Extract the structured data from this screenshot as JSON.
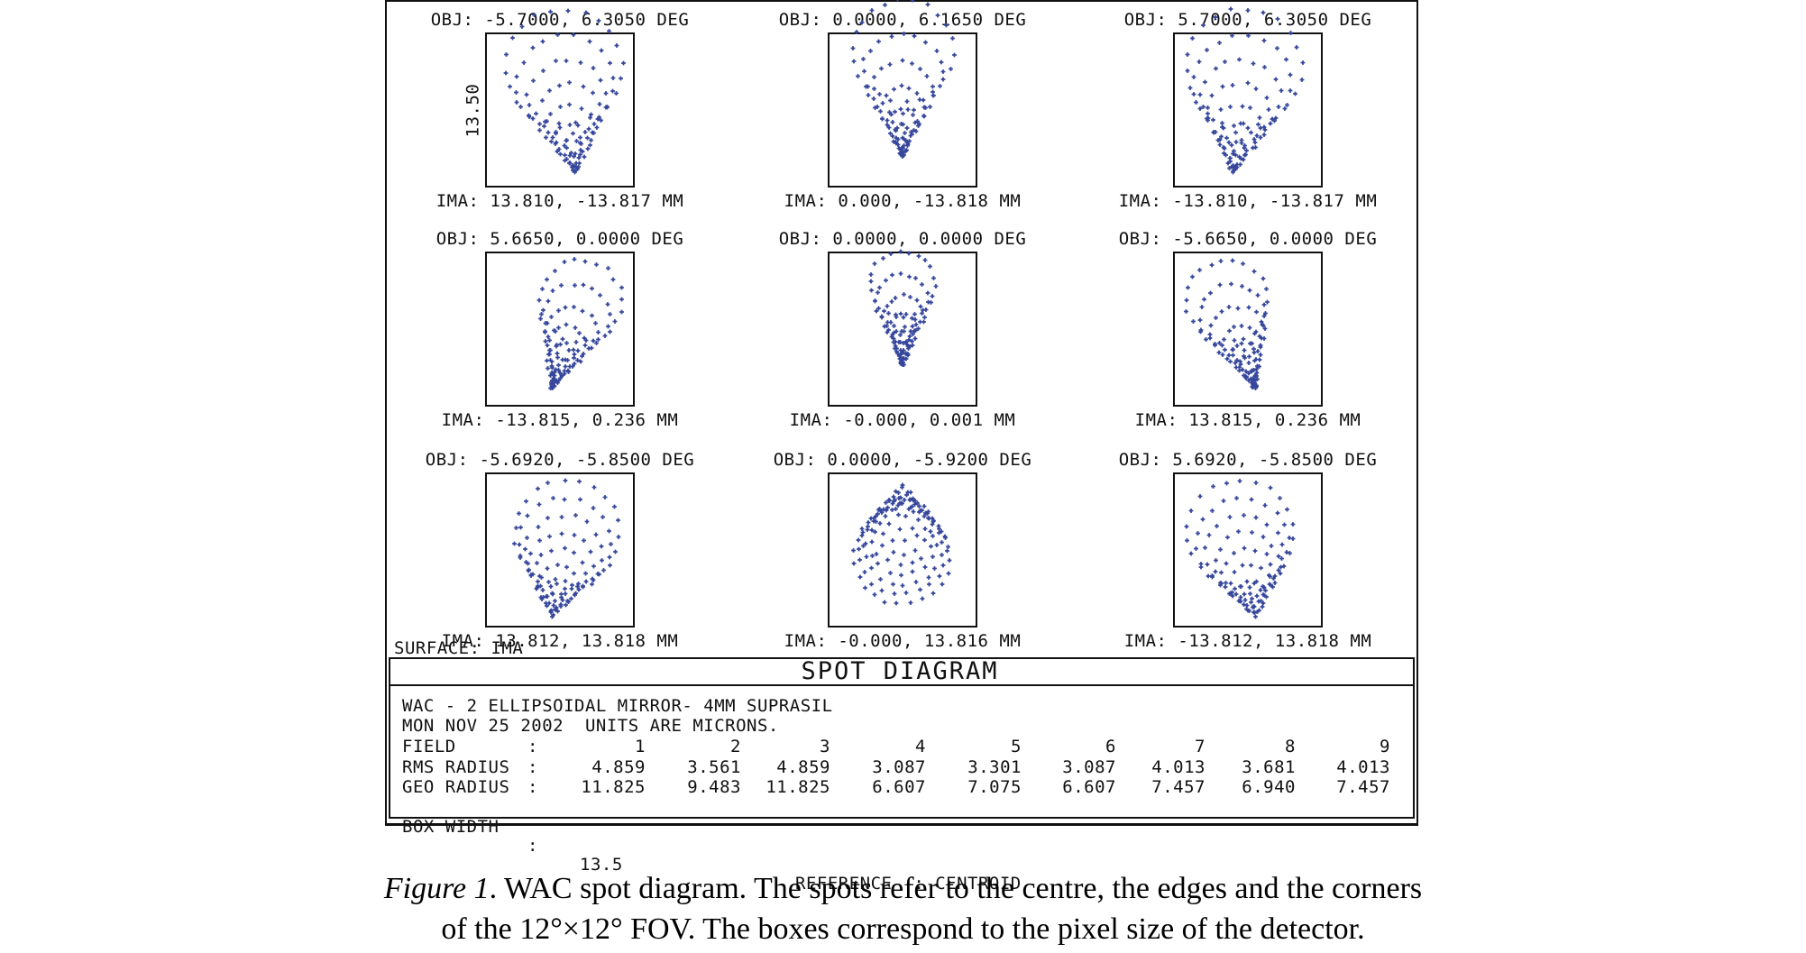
{
  "figure": {
    "title": "SPOT DIAGRAM",
    "surface_label": "SURFACE: IMA",
    "scale_label": "13.50",
    "header_lines": [
      "WAC - 2 ELLIPSOIDAL MIRROR- 4MM SUPRASIL",
      "MON NOV 25 2002  UNITS ARE MICRONS."
    ],
    "colors": {
      "spot": "#35469b",
      "line": "#111111"
    },
    "panels": [
      {
        "field": 1,
        "obj": "OBJ: -5.7000, 6.3050 DEG",
        "ima": "IMA: 13.810, -13.817 MM",
        "spots": {
          "apex": [
            0.6,
            0.9
          ],
          "dir": -6,
          "len": 0.68,
          "spread": 0.55,
          "exp": 1.5,
          "rings": 9,
          "seed": 11
        }
      },
      {
        "field": 2,
        "obj": "OBJ: 0.0000, 6.1650 DEG",
        "ima": "IMA: 0.000, -13.818 MM",
        "spots": {
          "apex": [
            0.5,
            0.8
          ],
          "dir": 0,
          "len": 0.68,
          "spread": 0.48,
          "exp": 2.0,
          "rings": 9,
          "seed": 22
        }
      },
      {
        "field": 3,
        "obj": "OBJ: 5.7000, 6.3050 DEG",
        "ima": "IMA: -13.810, -13.817 MM",
        "spots": {
          "apex": [
            0.4,
            0.9
          ],
          "dir": 6,
          "len": 0.68,
          "spread": 0.55,
          "exp": 1.5,
          "rings": 9,
          "seed": 33
        }
      },
      {
        "field": 4,
        "obj": "OBJ: 5.6650, 0.0000 DEG",
        "ima": "IMA: -13.815, 0.236 MM",
        "spots": {
          "apex": [
            0.45,
            0.88
          ],
          "dir": 18,
          "len": 0.59,
          "spread": 0.45,
          "exp": 1.8,
          "rings": 9,
          "seed": 44
        }
      },
      {
        "field": 5,
        "obj": "OBJ: 0.0000, 0.0000 DEG",
        "ima": "IMA: -0.000, 0.001 MM",
        "spots": {
          "apex": [
            0.5,
            0.73
          ],
          "dir": 0,
          "len": 0.52,
          "spread": 0.41,
          "exp": 2.0,
          "rings": 9,
          "seed": 55
        }
      },
      {
        "field": 6,
        "obj": "OBJ: -5.6650, 0.0000 DEG",
        "ima": "IMA: 13.815, 0.236 MM",
        "spots": {
          "apex": [
            0.55,
            0.88
          ],
          "dir": -18,
          "len": 0.59,
          "spread": 0.45,
          "exp": 1.8,
          "rings": 9,
          "seed": 66
        }
      },
      {
        "field": 7,
        "obj": "OBJ: -5.6920, -5.8500 DEG",
        "ima": "IMA: 13.812, 13.818 MM",
        "spots": {
          "apex": [
            0.45,
            0.93
          ],
          "dir": 10,
          "len": 0.55,
          "spread": 0.62,
          "exp": 1.2,
          "rings": 9,
          "seed": 77
        }
      },
      {
        "field": 8,
        "obj": "OBJ: 0.0000, -5.9200 DEG",
        "ima": "IMA: -0.000, 13.816 MM",
        "spots": {
          "apex": [
            0.5,
            0.08
          ],
          "dir": 180,
          "len": 0.46,
          "spread": 0.67,
          "exp": 0.8,
          "rings": 10,
          "seed": 88
        }
      },
      {
        "field": 9,
        "obj": "OBJ: 5.6920, -5.8500 DEG",
        "ima": "IMA: -13.812, 13.818 MM",
        "spots": {
          "apex": [
            0.55,
            0.93
          ],
          "dir": -10,
          "len": 0.55,
          "spread": 0.62,
          "exp": 1.2,
          "rings": 9,
          "seed": 99
        }
      }
    ],
    "table": {
      "rows": [
        {
          "label": "FIELD",
          "values": [
            "1",
            "2",
            "3",
            "4",
            "5",
            "6",
            "7",
            "8",
            "9"
          ]
        },
        {
          "label": "RMS RADIUS",
          "values": [
            "4.859",
            "3.561",
            "4.859",
            "3.087",
            "3.301",
            "3.087",
            "4.013",
            "3.681",
            "4.013"
          ]
        },
        {
          "label": "GEO RADIUS",
          "values": [
            "11.825",
            "9.483",
            "11.825",
            "6.607",
            "7.075",
            "6.607",
            "7.457",
            "6.940",
            "7.457"
          ]
        }
      ],
      "box_width_label": "BOX WIDTH",
      "box_width_value": "13.5",
      "reference_label": "REFERENCE  : CENTROID"
    }
  },
  "caption": {
    "label": "Figure 1",
    "line1_rest": ". WAC spot diagram. The spots refer to the centre, the edges and the corners",
    "line2": "of the 12°×12° FOV. The boxes correspond to the pixel size of the detector."
  },
  "chart_data": {
    "type": "scatter",
    "title": "SPOT DIAGRAM",
    "lens": "WAC - 2 ELLIPSOIDAL MIRROR- 4MM SUPRASIL",
    "date": "MON NOV 25 2002",
    "units": "MICRONS",
    "surface": "IMA",
    "reference": "CENTROID",
    "box_width_microns": 13.5,
    "grid_layout": "3x3 spot diagrams, fields 1-9 reading order",
    "fields": [
      {
        "field": 1,
        "obj_deg": [
          -5.7,
          6.305
        ],
        "ima_mm": [
          13.81,
          -13.817
        ],
        "rms_radius": 4.859,
        "geo_radius": 11.825
      },
      {
        "field": 2,
        "obj_deg": [
          0.0,
          6.165
        ],
        "ima_mm": [
          0.0,
          -13.818
        ],
        "rms_radius": 3.561,
        "geo_radius": 9.483
      },
      {
        "field": 3,
        "obj_deg": [
          5.7,
          6.305
        ],
        "ima_mm": [
          -13.81,
          -13.817
        ],
        "rms_radius": 4.859,
        "geo_radius": 11.825
      },
      {
        "field": 4,
        "obj_deg": [
          5.665,
          0.0
        ],
        "ima_mm": [
          -13.815,
          0.236
        ],
        "rms_radius": 3.087,
        "geo_radius": 6.607
      },
      {
        "field": 5,
        "obj_deg": [
          0.0,
          0.0
        ],
        "ima_mm": [
          -0.0,
          0.001
        ],
        "rms_radius": 3.301,
        "geo_radius": 7.075
      },
      {
        "field": 6,
        "obj_deg": [
          -5.665,
          0.0
        ],
        "ima_mm": [
          13.815,
          0.236
        ],
        "rms_radius": 3.087,
        "geo_radius": 6.607
      },
      {
        "field": 7,
        "obj_deg": [
          -5.692,
          -5.85
        ],
        "ima_mm": [
          13.812,
          13.818
        ],
        "rms_radius": 4.013,
        "geo_radius": 7.457
      },
      {
        "field": 8,
        "obj_deg": [
          0.0,
          -5.92
        ],
        "ima_mm": [
          -0.0,
          13.816
        ],
        "rms_radius": 3.681,
        "geo_radius": 6.94
      },
      {
        "field": 9,
        "obj_deg": [
          5.692,
          -5.85
        ],
        "ima_mm": [
          -13.812,
          13.818
        ],
        "rms_radius": 4.013,
        "geo_radius": 7.457
      }
    ]
  }
}
